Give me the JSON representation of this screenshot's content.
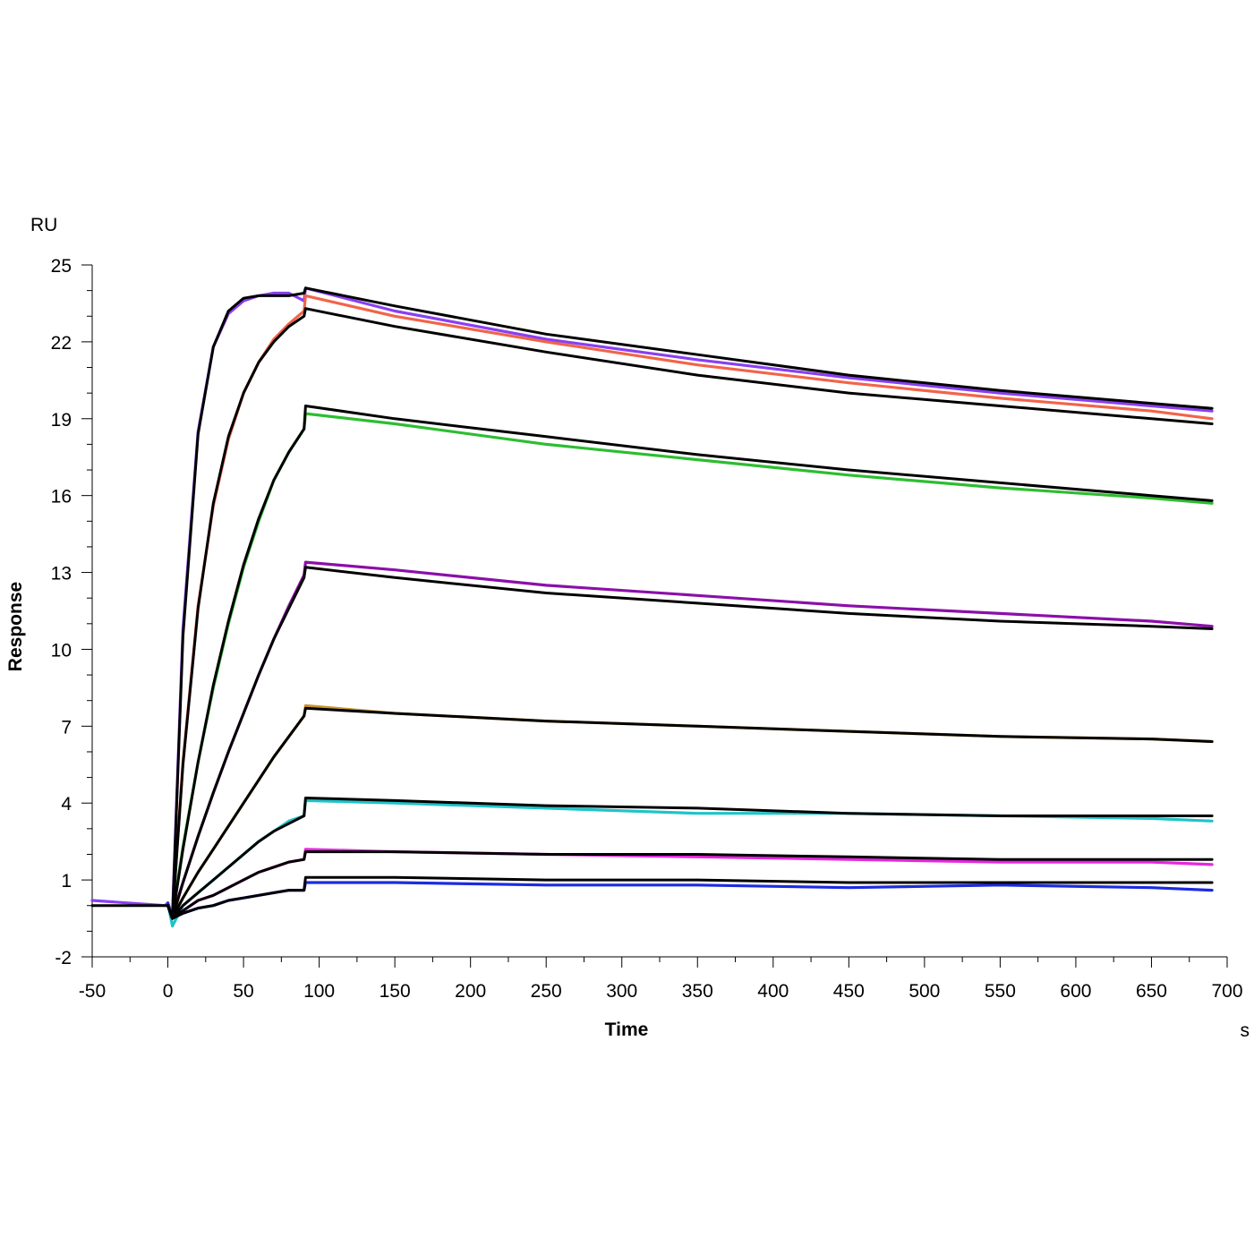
{
  "chart_data": {
    "type": "line",
    "title": "",
    "xlabel": "Time",
    "ylabel": "Response",
    "x_unit": "s",
    "y_unit": "RU",
    "xlim": [
      -50,
      700
    ],
    "ylim": [
      -2,
      25
    ],
    "x_ticks": [
      -50,
      0,
      50,
      100,
      150,
      200,
      250,
      300,
      350,
      400,
      450,
      500,
      550,
      600,
      650,
      700
    ],
    "y_ticks": [
      -2,
      1,
      4,
      7,
      10,
      13,
      16,
      19,
      22,
      25
    ],
    "grid": false,
    "legend": "none",
    "series": [
      {
        "color": "#8a3ff2",
        "x": [
          -50,
          -2,
          0,
          3,
          10,
          20,
          30,
          40,
          50,
          60,
          70,
          80,
          90,
          91,
          150,
          250,
          350,
          450,
          550,
          650,
          690
        ],
        "values": [
          0.2,
          0.0,
          0.1,
          -0.4,
          10.8,
          18.5,
          21.8,
          23.1,
          23.6,
          23.8,
          23.9,
          23.9,
          23.6,
          24.1,
          23.2,
          22.1,
          21.3,
          20.6,
          20.0,
          19.5,
          19.3
        ]
      },
      {
        "color": "#f26449",
        "x": [
          0,
          3,
          10,
          20,
          30,
          40,
          50,
          60,
          70,
          80,
          90,
          91,
          150,
          250,
          350,
          450,
          550,
          650,
          690
        ],
        "values": [
          0.1,
          -0.4,
          5.6,
          11.7,
          15.6,
          18.2,
          20.0,
          21.2,
          22.1,
          22.7,
          23.2,
          23.8,
          23.0,
          22.0,
          21.1,
          20.4,
          19.8,
          19.3,
          19.0
        ]
      },
      {
        "color": "#2dbd31",
        "x": [
          0,
          3,
          10,
          20,
          30,
          40,
          50,
          60,
          70,
          80,
          90,
          91,
          150,
          250,
          350,
          450,
          550,
          650,
          690
        ],
        "values": [
          0.1,
          -0.4,
          2.3,
          5.6,
          8.5,
          11.0,
          13.2,
          15.0,
          16.6,
          17.7,
          18.6,
          19.2,
          18.8,
          18.0,
          17.4,
          16.8,
          16.3,
          15.9,
          15.7
        ]
      },
      {
        "color": "#8b0fa8",
        "x": [
          0,
          3,
          10,
          20,
          30,
          40,
          50,
          60,
          70,
          80,
          90,
          91,
          150,
          250,
          350,
          450,
          550,
          650,
          690
        ],
        "values": [
          0.1,
          -0.4,
          0.9,
          2.7,
          4.4,
          6.0,
          7.5,
          9.0,
          10.4,
          11.7,
          12.9,
          13.4,
          13.1,
          12.5,
          12.1,
          11.7,
          11.4,
          11.1,
          10.9
        ]
      },
      {
        "color": "#c8962e",
        "x": [
          0,
          3,
          10,
          20,
          30,
          40,
          50,
          60,
          70,
          80,
          90,
          91,
          150,
          250,
          350,
          450,
          550,
          650,
          690
        ],
        "values": [
          0.1,
          -0.4,
          0.3,
          1.3,
          2.2,
          3.1,
          4.0,
          4.9,
          5.8,
          6.6,
          7.4,
          7.8,
          7.5,
          7.2,
          7.0,
          6.8,
          6.6,
          6.5,
          6.4
        ]
      },
      {
        "color": "#1fc4c8",
        "x": [
          0,
          3,
          10,
          20,
          30,
          40,
          50,
          60,
          70,
          80,
          90,
          91,
          150,
          250,
          350,
          450,
          550,
          650,
          690
        ],
        "values": [
          0.1,
          -0.8,
          0.0,
          0.5,
          1.0,
          1.5,
          2.0,
          2.5,
          2.9,
          3.3,
          3.5,
          4.1,
          4.0,
          3.8,
          3.6,
          3.6,
          3.5,
          3.4,
          3.3
        ]
      },
      {
        "color": "#e627e0",
        "x": [
          0,
          3,
          10,
          20,
          30,
          40,
          50,
          60,
          70,
          80,
          90,
          91,
          150,
          250,
          350,
          450,
          550,
          650,
          690
        ],
        "values": [
          0.1,
          -0.5,
          -0.2,
          0.2,
          0.4,
          0.7,
          1.0,
          1.3,
          1.5,
          1.7,
          1.8,
          2.2,
          2.1,
          2.0,
          1.9,
          1.8,
          1.7,
          1.7,
          1.6
        ]
      },
      {
        "color": "#1c2be0",
        "x": [
          0,
          3,
          10,
          20,
          30,
          40,
          50,
          60,
          70,
          80,
          90,
          91,
          150,
          250,
          350,
          450,
          550,
          650,
          690
        ],
        "values": [
          0.1,
          -0.5,
          -0.3,
          -0.1,
          0.0,
          0.2,
          0.3,
          0.4,
          0.5,
          0.6,
          0.6,
          0.9,
          0.9,
          0.8,
          0.8,
          0.7,
          0.8,
          0.7,
          0.6
        ]
      },
      {
        "color": "#000000",
        "x": [
          -50,
          -2,
          0,
          3,
          10,
          20,
          30,
          40,
          50,
          60,
          70,
          80,
          90,
          91,
          150,
          250,
          350,
          450,
          550,
          650,
          690
        ],
        "values": [
          0.0,
          0.0,
          0.0,
          -0.5,
          10.5,
          18.4,
          21.8,
          23.2,
          23.7,
          23.8,
          23.8,
          23.8,
          23.9,
          24.1,
          23.4,
          22.3,
          21.5,
          20.7,
          20.1,
          19.6,
          19.4
        ]
      },
      {
        "color": "#000000",
        "x": [
          0,
          3,
          10,
          20,
          30,
          40,
          50,
          60,
          70,
          80,
          90,
          91,
          150,
          250,
          350,
          450,
          550,
          650,
          690
        ],
        "values": [
          0.0,
          -0.5,
          5.5,
          11.6,
          15.7,
          18.3,
          20.0,
          21.2,
          22.0,
          22.6,
          23.0,
          23.3,
          22.6,
          21.6,
          20.7,
          20.0,
          19.5,
          19.0,
          18.8
        ]
      },
      {
        "color": "#000000",
        "x": [
          0,
          3,
          10,
          20,
          30,
          40,
          50,
          60,
          70,
          80,
          90,
          91,
          150,
          250,
          350,
          450,
          550,
          650,
          690
        ],
        "values": [
          0.0,
          -0.5,
          2.2,
          5.6,
          8.6,
          11.1,
          13.3,
          15.1,
          16.6,
          17.7,
          18.6,
          19.5,
          19.0,
          18.3,
          17.6,
          17.0,
          16.5,
          16.0,
          15.8
        ]
      },
      {
        "color": "#000000",
        "x": [
          0,
          3,
          10,
          20,
          30,
          40,
          50,
          60,
          70,
          80,
          90,
          91,
          150,
          250,
          350,
          450,
          550,
          650,
          690
        ],
        "values": [
          0.0,
          -0.5,
          0.9,
          2.7,
          4.4,
          6.0,
          7.5,
          9.0,
          10.4,
          11.6,
          12.8,
          13.2,
          12.8,
          12.2,
          11.8,
          11.4,
          11.1,
          10.9,
          10.8
        ]
      },
      {
        "color": "#000000",
        "x": [
          0,
          3,
          10,
          20,
          30,
          40,
          50,
          60,
          70,
          80,
          90,
          91,
          150,
          250,
          350,
          450,
          550,
          650,
          690
        ],
        "values": [
          0.0,
          -0.5,
          0.3,
          1.3,
          2.2,
          3.1,
          4.0,
          4.9,
          5.8,
          6.6,
          7.4,
          7.7,
          7.5,
          7.2,
          7.0,
          6.8,
          6.6,
          6.5,
          6.4
        ]
      },
      {
        "color": "#000000",
        "x": [
          0,
          3,
          10,
          20,
          30,
          40,
          50,
          60,
          70,
          80,
          90,
          91,
          150,
          250,
          350,
          450,
          550,
          650,
          690
        ],
        "values": [
          0.0,
          -0.5,
          0.0,
          0.5,
          1.0,
          1.5,
          2.0,
          2.5,
          2.9,
          3.2,
          3.5,
          4.2,
          4.1,
          3.9,
          3.8,
          3.6,
          3.5,
          3.5,
          3.5
        ]
      },
      {
        "color": "#000000",
        "x": [
          0,
          3,
          10,
          20,
          30,
          40,
          50,
          60,
          70,
          80,
          90,
          91,
          150,
          250,
          350,
          450,
          550,
          650,
          690
        ],
        "values": [
          0.0,
          -0.5,
          -0.2,
          0.2,
          0.4,
          0.7,
          1.0,
          1.3,
          1.5,
          1.7,
          1.8,
          2.1,
          2.1,
          2.0,
          2.0,
          1.9,
          1.8,
          1.8,
          1.8
        ]
      },
      {
        "color": "#000000",
        "x": [
          0,
          3,
          10,
          20,
          30,
          40,
          50,
          60,
          70,
          80,
          90,
          91,
          150,
          250,
          350,
          450,
          550,
          650,
          690
        ],
        "values": [
          0.0,
          -0.5,
          -0.3,
          -0.1,
          0.0,
          0.2,
          0.3,
          0.4,
          0.5,
          0.6,
          0.6,
          1.1,
          1.1,
          1.0,
          1.0,
          0.9,
          0.9,
          0.9,
          0.9
        ]
      }
    ]
  }
}
